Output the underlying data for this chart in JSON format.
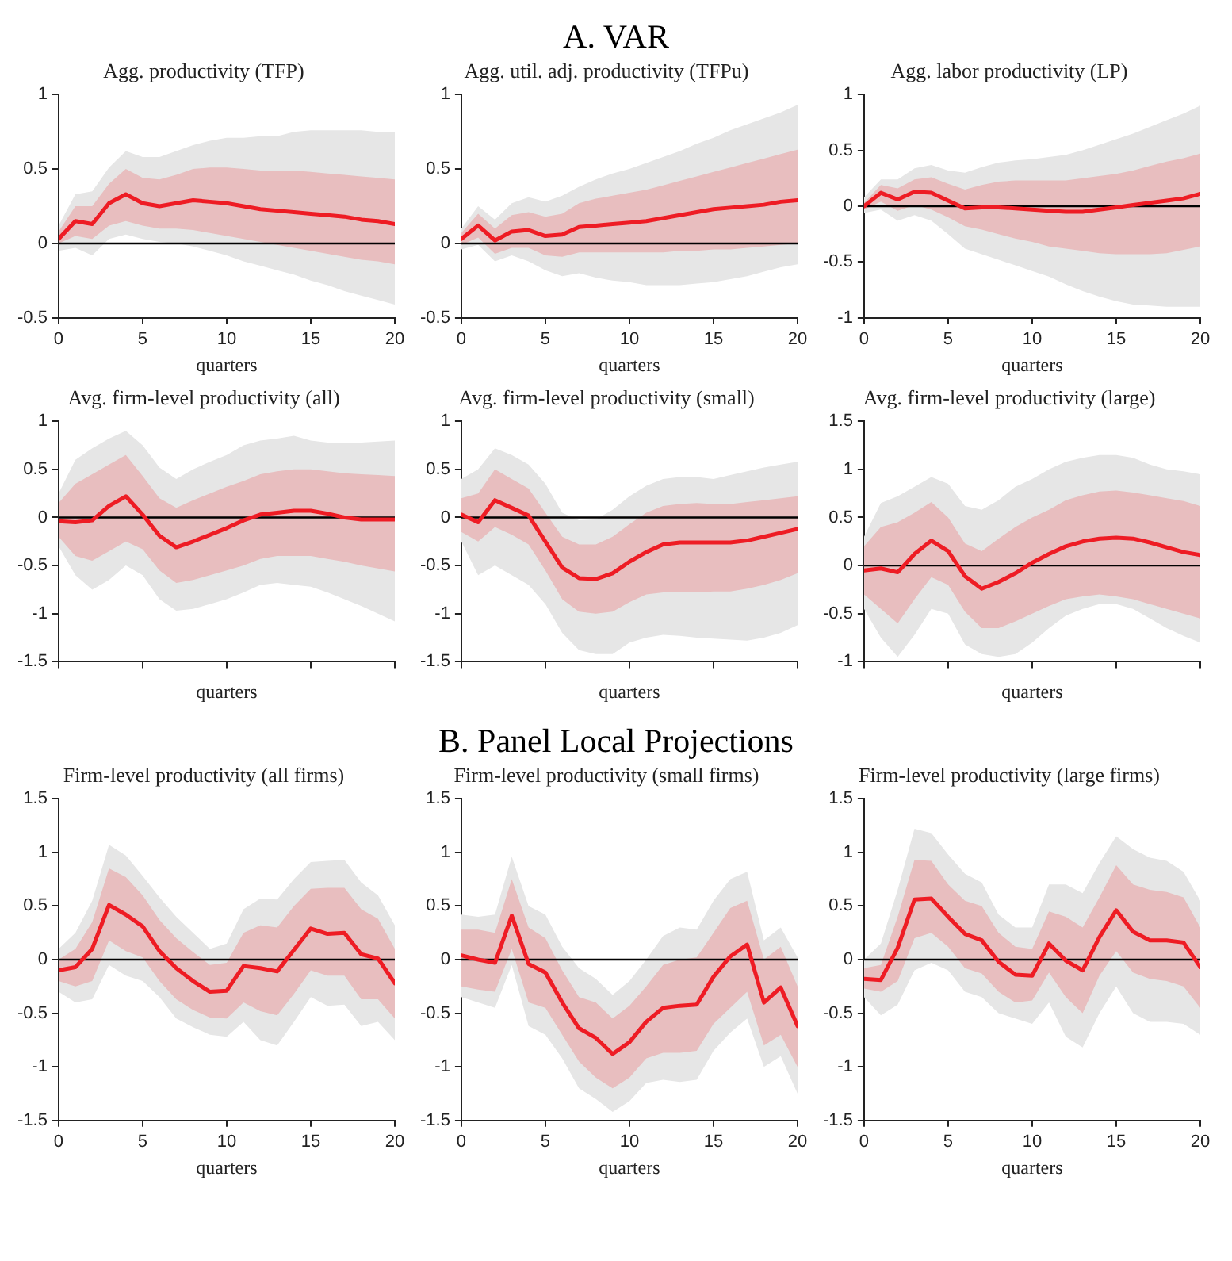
{
  "chart_data": [
    {
      "type": "line",
      "annotations": [
        "A. VAR"
      ],
      "title": "Agg. productivity (TFP)",
      "xlabel": "quarters",
      "x": [
        0,
        1,
        2,
        3,
        4,
        5,
        6,
        7,
        8,
        9,
        10,
        11,
        12,
        13,
        14,
        15,
        16,
        17,
        18,
        19,
        20
      ],
      "xlim": [
        0,
        20
      ],
      "xticks": [
        0,
        5,
        10,
        15,
        20
      ],
      "ylim": [
        -0.5,
        1
      ],
      "yticks": [
        -0.5,
        0,
        0.5,
        1
      ],
      "ref_lines": [
        {
          "axis": "y",
          "value": 0,
          "color": "#000000"
        }
      ],
      "series": [
        {
          "color": "#e6e6e6",
          "values": [
            null,
            null,
            null,
            null,
            null,
            null,
            null,
            null,
            null,
            null,
            null,
            null,
            null,
            null,
            null,
            null,
            null,
            null,
            null,
            null,
            null
          ],
          "lower": [
            -0.05,
            -0.03,
            -0.08,
            0.03,
            0.06,
            0.03,
            0.01,
            0,
            -0.02,
            -0.05,
            -0.08,
            -0.12,
            -0.15,
            -0.18,
            -0.21,
            -0.25,
            -0.28,
            -0.32,
            -0.35,
            -0.38,
            -0.41
          ],
          "upper": [
            0.12,
            0.33,
            0.35,
            0.51,
            0.62,
            0.58,
            0.58,
            0.62,
            0.66,
            0.69,
            0.71,
            0.71,
            0.72,
            0.72,
            0.75,
            0.76,
            0.76,
            0.76,
            0.76,
            0.75,
            0.75
          ]
        },
        {
          "color": "#ee1c24",
          "values": [
            0.03,
            0.15,
            0.13,
            0.27,
            0.33,
            0.27,
            0.25,
            0.27,
            0.29,
            0.28,
            0.27,
            0.25,
            0.23,
            0.22,
            0.21,
            0.2,
            0.19,
            0.18,
            0.16,
            0.15,
            0.13
          ],
          "lower": [
            0,
            0.05,
            0.03,
            0.12,
            0.15,
            0.12,
            0.1,
            0.1,
            0.09,
            0.07,
            0.05,
            0.03,
            0.01,
            -0.01,
            -0.03,
            -0.05,
            -0.07,
            -0.09,
            -0.11,
            -0.12,
            -0.14
          ],
          "upper": [
            0.08,
            0.25,
            0.25,
            0.4,
            0.5,
            0.44,
            0.43,
            0.46,
            0.5,
            0.51,
            0.51,
            0.5,
            0.49,
            0.49,
            0.49,
            0.48,
            0.47,
            0.46,
            0.45,
            0.44,
            0.43
          ]
        }
      ]
    },
    {
      "type": "line",
      "title": "Agg. util. adj. productivity (TFPu)",
      "xlabel": "quarters",
      "x": [
        0,
        1,
        2,
        3,
        4,
        5,
        6,
        7,
        8,
        9,
        10,
        11,
        12,
        13,
        14,
        15,
        16,
        17,
        18,
        19,
        20
      ],
      "xlim": [
        0,
        20
      ],
      "xticks": [
        0,
        5,
        10,
        15,
        20
      ],
      "ylim": [
        -0.5,
        1
      ],
      "yticks": [
        -0.5,
        0,
        0.5,
        1
      ],
      "ref_lines": [
        {
          "axis": "y",
          "value": 0,
          "color": "#000000"
        }
      ],
      "series": [
        {
          "color": "#e6e6e6",
          "values": [
            null,
            null,
            null,
            null,
            null,
            null,
            null,
            null,
            null,
            null,
            null,
            null,
            null,
            null,
            null,
            null,
            null,
            null,
            null,
            null,
            null
          ],
          "lower": [
            -0.04,
            -0.01,
            -0.12,
            -0.08,
            -0.12,
            -0.18,
            -0.22,
            -0.2,
            -0.23,
            -0.25,
            -0.26,
            -0.28,
            -0.28,
            -0.28,
            -0.27,
            -0.26,
            -0.24,
            -0.22,
            -0.19,
            -0.16,
            -0.14
          ],
          "upper": [
            0.1,
            0.25,
            0.16,
            0.27,
            0.31,
            0.28,
            0.32,
            0.38,
            0.43,
            0.47,
            0.5,
            0.54,
            0.58,
            0.62,
            0.67,
            0.71,
            0.76,
            0.8,
            0.84,
            0.88,
            0.93
          ]
        },
        {
          "color": "#ee1c24",
          "values": [
            0.03,
            0.12,
            0.02,
            0.08,
            0.09,
            0.05,
            0.06,
            0.11,
            0.12,
            0.13,
            0.14,
            0.15,
            0.17,
            0.19,
            0.21,
            0.23,
            0.24,
            0.25,
            0.26,
            0.28,
            0.29
          ],
          "lower": [
            -0.01,
            0.04,
            -0.07,
            -0.03,
            -0.03,
            -0.08,
            -0.09,
            -0.06,
            -0.06,
            -0.06,
            -0.06,
            -0.06,
            -0.06,
            -0.05,
            -0.05,
            -0.04,
            -0.04,
            -0.03,
            -0.02,
            -0.01,
            0
          ],
          "upper": [
            0.07,
            0.2,
            0.1,
            0.19,
            0.21,
            0.18,
            0.2,
            0.27,
            0.3,
            0.32,
            0.34,
            0.36,
            0.39,
            0.42,
            0.45,
            0.48,
            0.51,
            0.54,
            0.57,
            0.6,
            0.63
          ]
        }
      ]
    },
    {
      "type": "line",
      "title": "Agg. labor productivity (LP)",
      "xlabel": "quarters",
      "x": [
        0,
        1,
        2,
        3,
        4,
        5,
        6,
        7,
        8,
        9,
        10,
        11,
        12,
        13,
        14,
        15,
        16,
        17,
        18,
        19,
        20
      ],
      "xlim": [
        0,
        20
      ],
      "xticks": [
        0,
        5,
        10,
        15,
        20
      ],
      "ylim": [
        -1,
        1
      ],
      "yticks": [
        -1,
        -0.5,
        0,
        0.5,
        1
      ],
      "ref_lines": [
        {
          "axis": "y",
          "value": 0,
          "color": "#000000"
        }
      ],
      "series": [
        {
          "color": "#e6e6e6",
          "values": [
            null,
            null,
            null,
            null,
            null,
            null,
            null,
            null,
            null,
            null,
            null,
            null,
            null,
            null,
            null,
            null,
            null,
            null,
            null,
            null,
            null
          ],
          "lower": [
            -0.06,
            -0.03,
            -0.13,
            -0.08,
            -0.13,
            -0.25,
            -0.38,
            -0.43,
            -0.48,
            -0.53,
            -0.58,
            -0.63,
            -0.7,
            -0.76,
            -0.81,
            -0.85,
            -0.88,
            -0.89,
            -0.9,
            -0.9,
            -0.9
          ],
          "upper": [
            0.08,
            0.24,
            0.24,
            0.34,
            0.37,
            0.32,
            0.3,
            0.35,
            0.39,
            0.41,
            0.42,
            0.44,
            0.46,
            0.5,
            0.55,
            0.6,
            0.65,
            0.71,
            0.77,
            0.83,
            0.9
          ]
        },
        {
          "color": "#ee1c24",
          "values": [
            0,
            0.12,
            0.06,
            0.13,
            0.12,
            0.05,
            -0.02,
            -0.01,
            -0.01,
            -0.02,
            -0.03,
            -0.04,
            -0.05,
            -0.05,
            -0.03,
            -0.01,
            0.01,
            0.03,
            0.05,
            0.07,
            0.11
          ],
          "lower": [
            -0.03,
            0.04,
            -0.04,
            0.01,
            -0.03,
            -0.1,
            -0.18,
            -0.21,
            -0.25,
            -0.29,
            -0.32,
            -0.36,
            -0.38,
            -0.4,
            -0.42,
            -0.43,
            -0.43,
            -0.43,
            -0.42,
            -0.39,
            -0.36
          ],
          "upper": [
            0.03,
            0.19,
            0.16,
            0.24,
            0.26,
            0.2,
            0.15,
            0.19,
            0.22,
            0.23,
            0.23,
            0.23,
            0.23,
            0.25,
            0.27,
            0.29,
            0.32,
            0.36,
            0.4,
            0.43,
            0.47
          ]
        }
      ]
    },
    {
      "type": "line",
      "title": "Avg. firm-level productivity (all)",
      "xlabel": "quarters",
      "tick_labels": "y",
      "x": [
        0,
        1,
        2,
        3,
        4,
        5,
        6,
        7,
        8,
        9,
        10,
        11,
        12,
        13,
        14,
        15,
        16,
        17,
        18,
        19,
        20
      ],
      "xlim": [
        0,
        20
      ],
      "xticks": [
        {
          "value": 0,
          "label": null
        },
        {
          "value": 5,
          "label": null
        },
        {
          "value": 10,
          "label": null
        },
        {
          "value": 15,
          "label": null
        },
        {
          "value": 20,
          "label": null
        }
      ],
      "ylim": [
        -1.5,
        1
      ],
      "yticks": [
        -1.5,
        -1,
        -0.5,
        0,
        0.5,
        1
      ],
      "ref_lines": [
        {
          "axis": "y",
          "value": 0,
          "color": "#000000"
        }
      ],
      "series": [
        {
          "color": "#e6e6e6",
          "values": [
            null,
            null,
            null,
            null,
            null,
            null,
            null,
            null,
            null,
            null,
            null,
            null,
            null,
            null,
            null,
            null,
            null,
            null,
            null,
            null,
            null
          ],
          "lower": [
            -0.3,
            -0.6,
            -0.75,
            -0.65,
            -0.5,
            -0.6,
            -0.85,
            -0.97,
            -0.95,
            -0.9,
            -0.85,
            -0.78,
            -0.7,
            -0.68,
            -0.7,
            -0.72,
            -0.78,
            -0.85,
            -0.92,
            -1,
            -1.08
          ],
          "upper": [
            0.25,
            0.6,
            0.72,
            0.82,
            0.9,
            0.75,
            0.52,
            0.4,
            0.5,
            0.58,
            0.65,
            0.75,
            0.8,
            0.82,
            0.85,
            0.8,
            0.78,
            0.77,
            0.78,
            0.79,
            0.8
          ]
        },
        {
          "color": "#ee1c24",
          "values": [
            -0.04,
            -0.05,
            -0.03,
            0.12,
            0.22,
            0.03,
            -0.19,
            -0.31,
            -0.25,
            -0.18,
            -0.11,
            -0.03,
            0.03,
            0.05,
            0.07,
            0.07,
            0.04,
            0,
            -0.02,
            -0.02,
            -0.02
          ],
          "lower": [
            -0.2,
            -0.4,
            -0.45,
            -0.35,
            -0.25,
            -0.33,
            -0.55,
            -0.68,
            -0.65,
            -0.6,
            -0.55,
            -0.5,
            -0.43,
            -0.4,
            -0.4,
            -0.4,
            -0.43,
            -0.46,
            -0.5,
            -0.53,
            -0.56
          ],
          "upper": [
            0.15,
            0.35,
            0.45,
            0.55,
            0.65,
            0.43,
            0.2,
            0.1,
            0.18,
            0.25,
            0.32,
            0.38,
            0.45,
            0.48,
            0.5,
            0.5,
            0.48,
            0.46,
            0.45,
            0.44,
            0.43
          ]
        }
      ]
    },
    {
      "type": "line",
      "title": "Avg. firm-level productivity (small)",
      "xlabel": "quarters",
      "tick_labels": "y",
      "x": [
        0,
        1,
        2,
        3,
        4,
        5,
        6,
        7,
        8,
        9,
        10,
        11,
        12,
        13,
        14,
        15,
        16,
        17,
        18,
        19,
        20
      ],
      "xlim": [
        0,
        20
      ],
      "xticks": [
        {
          "value": 0,
          "label": null
        },
        {
          "value": 5,
          "label": null
        },
        {
          "value": 10,
          "label": null
        },
        {
          "value": 15,
          "label": null
        },
        {
          "value": 20,
          "label": null
        }
      ],
      "ylim": [
        -1.5,
        1
      ],
      "yticks": [
        -1.5,
        -1,
        -0.5,
        0,
        0.5,
        1
      ],
      "ref_lines": [
        {
          "axis": "y",
          "value": 0,
          "color": "#000000"
        }
      ],
      "series": [
        {
          "color": "#e6e6e6",
          "values": [
            null,
            null,
            null,
            null,
            null,
            null,
            null,
            null,
            null,
            null,
            null,
            null,
            null,
            null,
            null,
            null,
            null,
            null,
            null,
            null,
            null
          ],
          "lower": [
            -0.25,
            -0.6,
            -0.5,
            -0.6,
            -0.7,
            -0.9,
            -1.2,
            -1.38,
            -1.42,
            -1.42,
            -1.3,
            -1.25,
            -1.22,
            -1.23,
            -1.25,
            -1.26,
            -1.27,
            -1.28,
            -1.25,
            -1.2,
            -1.12
          ],
          "upper": [
            0.4,
            0.5,
            0.72,
            0.65,
            0.55,
            0.35,
            0.05,
            -0.03,
            -0.02,
            0.08,
            0.22,
            0.33,
            0.4,
            0.42,
            0.42,
            0.4,
            0.44,
            0.48,
            0.52,
            0.55,
            0.58
          ]
        },
        {
          "color": "#ee1c24",
          "values": [
            0.03,
            -0.05,
            0.18,
            0.1,
            0.02,
            -0.25,
            -0.52,
            -0.63,
            -0.64,
            -0.58,
            -0.46,
            -0.36,
            -0.28,
            -0.26,
            -0.26,
            -0.26,
            -0.26,
            -0.24,
            -0.2,
            -0.16,
            -0.12
          ],
          "lower": [
            -0.15,
            -0.25,
            -0.1,
            -0.18,
            -0.28,
            -0.55,
            -0.85,
            -0.98,
            -1,
            -0.98,
            -0.88,
            -0.8,
            -0.78,
            -0.78,
            -0.78,
            -0.77,
            -0.77,
            -0.74,
            -0.7,
            -0.65,
            -0.58
          ],
          "upper": [
            0.2,
            0.25,
            0.5,
            0.4,
            0.3,
            0.05,
            -0.2,
            -0.28,
            -0.28,
            -0.2,
            -0.07,
            0.05,
            0.12,
            0.14,
            0.15,
            0.14,
            0.14,
            0.16,
            0.18,
            0.2,
            0.22
          ]
        }
      ]
    },
    {
      "type": "line",
      "title": "Avg. firm-level productivity (large)",
      "xlabel": "quarters",
      "tick_labels": "y",
      "x": [
        0,
        1,
        2,
        3,
        4,
        5,
        6,
        7,
        8,
        9,
        10,
        11,
        12,
        13,
        14,
        15,
        16,
        17,
        18,
        19,
        20
      ],
      "xlim": [
        0,
        20
      ],
      "xticks": [
        {
          "value": 0,
          "label": null
        },
        {
          "value": 5,
          "label": null
        },
        {
          "value": 10,
          "label": null
        },
        {
          "value": 15,
          "label": null
        },
        {
          "value": 20,
          "label": null
        }
      ],
      "ylim": [
        -1,
        1.5
      ],
      "yticks": [
        -1,
        -0.5,
        0,
        0.5,
        1,
        1.5
      ],
      "ref_lines": [
        {
          "axis": "y",
          "value": 0,
          "color": "#000000"
        }
      ],
      "series": [
        {
          "color": "#e6e6e6",
          "values": [
            null,
            null,
            null,
            null,
            null,
            null,
            null,
            null,
            null,
            null,
            null,
            null,
            null,
            null,
            null,
            null,
            null,
            null,
            null,
            null,
            null
          ],
          "lower": [
            -0.45,
            -0.75,
            -0.95,
            -0.72,
            -0.45,
            -0.5,
            -0.82,
            -0.92,
            -0.95,
            -0.92,
            -0.8,
            -0.65,
            -0.52,
            -0.45,
            -0.4,
            -0.4,
            -0.45,
            -0.55,
            -0.65,
            -0.73,
            -0.8
          ],
          "upper": [
            0.3,
            0.65,
            0.72,
            0.82,
            0.92,
            0.85,
            0.62,
            0.58,
            0.68,
            0.82,
            0.9,
            1,
            1.08,
            1.12,
            1.15,
            1.15,
            1.12,
            1.05,
            1,
            0.98,
            0.95
          ]
        },
        {
          "color": "#ee1c24",
          "values": [
            -0.05,
            -0.03,
            -0.07,
            0.12,
            0.26,
            0.15,
            -0.11,
            -0.24,
            -0.17,
            -0.08,
            0.03,
            0.12,
            0.2,
            0.25,
            0.28,
            0.29,
            0.28,
            0.24,
            0.19,
            0.14,
            0.11
          ],
          "lower": [
            -0.3,
            -0.45,
            -0.6,
            -0.35,
            -0.12,
            -0.2,
            -0.48,
            -0.65,
            -0.65,
            -0.58,
            -0.5,
            -0.42,
            -0.35,
            -0.32,
            -0.3,
            -0.32,
            -0.35,
            -0.4,
            -0.45,
            -0.5,
            -0.55
          ],
          "upper": [
            0.2,
            0.4,
            0.45,
            0.55,
            0.66,
            0.5,
            0.23,
            0.15,
            0.28,
            0.4,
            0.5,
            0.58,
            0.68,
            0.73,
            0.77,
            0.78,
            0.76,
            0.73,
            0.7,
            0.67,
            0.62
          ]
        }
      ]
    },
    {
      "type": "line",
      "annotations": [
        "B. Panel Local Projections"
      ],
      "title": "Firm-level productivity (all firms)",
      "xlabel": "quarters",
      "x": [
        0,
        1,
        2,
        3,
        4,
        5,
        6,
        7,
        8,
        9,
        10,
        11,
        12,
        13,
        14,
        15,
        16,
        17,
        18,
        19,
        20
      ],
      "xlim": [
        0,
        20
      ],
      "xticks": [
        0,
        5,
        10,
        15,
        20
      ],
      "ylim": [
        -1.5,
        1.5
      ],
      "yticks": [
        -1.5,
        -1,
        -0.5,
        0,
        0.5,
        1,
        1.5
      ],
      "ref_lines": [
        {
          "axis": "y",
          "value": 0,
          "color": "#000000"
        }
      ],
      "series": [
        {
          "color": "#e6e6e6",
          "values": [
            null,
            null,
            null,
            null,
            null,
            null,
            null,
            null,
            null,
            null,
            null,
            null,
            null,
            null,
            null,
            null,
            null,
            null,
            null,
            null,
            null
          ],
          "lower": [
            -0.3,
            -0.4,
            -0.37,
            -0.05,
            -0.15,
            -0.2,
            -0.35,
            -0.55,
            -0.63,
            -0.7,
            -0.72,
            -0.58,
            -0.75,
            -0.8,
            -0.58,
            -0.35,
            -0.43,
            -0.42,
            -0.62,
            -0.58,
            -0.75
          ],
          "upper": [
            0.1,
            0.25,
            0.55,
            1.07,
            0.97,
            0.78,
            0.58,
            0.4,
            0.25,
            0.1,
            0.15,
            0.47,
            0.57,
            0.56,
            0.75,
            0.91,
            0.92,
            0.93,
            0.72,
            0.6,
            0.32
          ]
        },
        {
          "color": "#ee1c24",
          "values": [
            -0.1,
            -0.07,
            0.1,
            0.51,
            0.42,
            0.31,
            0.08,
            -0.08,
            -0.2,
            -0.3,
            -0.29,
            -0.06,
            -0.08,
            -0.11,
            0.09,
            0.29,
            0.24,
            0.25,
            0.05,
            0.01,
            -0.22
          ],
          "lower": [
            -0.2,
            -0.25,
            -0.2,
            0.18,
            0.08,
            0.02,
            -0.2,
            -0.37,
            -0.47,
            -0.54,
            -0.55,
            -0.4,
            -0.48,
            -0.52,
            -0.32,
            -0.1,
            -0.15,
            -0.15,
            -0.37,
            -0.37,
            -0.55
          ],
          "upper": [
            0,
            0.1,
            0.35,
            0.85,
            0.77,
            0.6,
            0.37,
            0.2,
            0.07,
            -0.05,
            -0.03,
            0.25,
            0.32,
            0.3,
            0.5,
            0.66,
            0.67,
            0.67,
            0.47,
            0.38,
            0.1
          ]
        }
      ]
    },
    {
      "type": "line",
      "title": "Firm-level productivity (small firms)",
      "xlabel": "quarters",
      "x": [
        0,
        1,
        2,
        3,
        4,
        5,
        6,
        7,
        8,
        9,
        10,
        11,
        12,
        13,
        14,
        15,
        16,
        17,
        18,
        19,
        20
      ],
      "xlim": [
        0,
        20
      ],
      "xticks": [
        0,
        5,
        10,
        15,
        20
      ],
      "ylim": [
        -1.5,
        1.5
      ],
      "yticks": [
        -1.5,
        -1,
        -0.5,
        0,
        0.5,
        1,
        1.5
      ],
      "ref_lines": [
        {
          "axis": "y",
          "value": 0,
          "color": "#000000"
        }
      ],
      "series": [
        {
          "color": "#e6e6e6",
          "values": [
            null,
            null,
            null,
            null,
            null,
            null,
            null,
            null,
            null,
            null,
            null,
            null,
            null,
            null,
            null,
            null,
            null,
            null,
            null,
            null,
            null
          ],
          "lower": [
            -0.35,
            -0.4,
            -0.45,
            -0.05,
            -0.62,
            -0.7,
            -0.92,
            -1.2,
            -1.3,
            -1.42,
            -1.32,
            -1.15,
            -1.12,
            -1.14,
            -1.12,
            -0.85,
            -0.68,
            -0.55,
            -1,
            -0.9,
            -1.25
          ],
          "upper": [
            0.42,
            0.4,
            0.42,
            0.96,
            0.5,
            0.42,
            0.12,
            -0.08,
            -0.18,
            -0.33,
            -0.2,
            0,
            0.22,
            0.3,
            0.28,
            0.55,
            0.75,
            0.82,
            0.18,
            0.3,
            0.02
          ]
        },
        {
          "color": "#ee1c24",
          "values": [
            0.04,
            0,
            -0.03,
            0.41,
            -0.04,
            -0.12,
            -0.4,
            -0.64,
            -0.73,
            -0.88,
            -0.77,
            -0.58,
            -0.45,
            -0.43,
            -0.42,
            -0.16,
            0.03,
            0.14,
            -0.4,
            -0.26,
            -0.62
          ],
          "lower": [
            -0.25,
            -0.28,
            -0.3,
            0.1,
            -0.4,
            -0.45,
            -0.7,
            -0.95,
            -1.1,
            -1.2,
            -1.1,
            -0.92,
            -0.87,
            -0.87,
            -0.85,
            -0.6,
            -0.45,
            -0.3,
            -0.8,
            -0.7,
            -1
          ],
          "upper": [
            0.28,
            0.28,
            0.25,
            0.75,
            0.3,
            0.2,
            -0.1,
            -0.35,
            -0.4,
            -0.55,
            -0.43,
            -0.25,
            -0.05,
            0,
            0.02,
            0.25,
            0.48,
            0.55,
            0,
            0.12,
            -0.25
          ]
        }
      ]
    },
    {
      "type": "line",
      "title": "Firm-level productivity (large firms)",
      "xlabel": "quarters",
      "x": [
        0,
        1,
        2,
        3,
        4,
        5,
        6,
        7,
        8,
        9,
        10,
        11,
        12,
        13,
        14,
        15,
        16,
        17,
        18,
        19,
        20
      ],
      "xlim": [
        0,
        20
      ],
      "xticks": [
        0,
        5,
        10,
        15,
        20
      ],
      "ylim": [
        -1.5,
        1.5
      ],
      "yticks": [
        -1.5,
        -1,
        -0.5,
        0,
        0.5,
        1,
        1.5
      ],
      "ref_lines": [
        {
          "axis": "y",
          "value": 0,
          "color": "#000000"
        }
      ],
      "series": [
        {
          "color": "#e6e6e6",
          "values": [
            null,
            null,
            null,
            null,
            null,
            null,
            null,
            null,
            null,
            null,
            null,
            null,
            null,
            null,
            null,
            null,
            null,
            null,
            null,
            null,
            null
          ],
          "lower": [
            -0.35,
            -0.52,
            -0.42,
            -0.1,
            -0.03,
            -0.1,
            -0.3,
            -0.35,
            -0.5,
            -0.55,
            -0.6,
            -0.4,
            -0.72,
            -0.82,
            -0.5,
            -0.25,
            -0.5,
            -0.58,
            -0.58,
            -0.6,
            -0.7
          ],
          "upper": [
            0,
            0.15,
            0.65,
            1.22,
            1.18,
            0.98,
            0.8,
            0.72,
            0.42,
            0.3,
            0.3,
            0.7,
            0.7,
            0.62,
            0.9,
            1.15,
            1.03,
            0.95,
            0.92,
            0.82,
            0.55
          ]
        },
        {
          "color": "#ee1c24",
          "values": [
            -0.18,
            -0.19,
            0.11,
            0.56,
            0.57,
            0.4,
            0.24,
            0.18,
            -0.02,
            -0.14,
            -0.15,
            0.15,
            -0.01,
            -0.1,
            0.21,
            0.46,
            0.26,
            0.18,
            0.18,
            0.16,
            -0.07
          ],
          "lower": [
            -0.27,
            -0.3,
            -0.2,
            0.2,
            0.25,
            0.12,
            -0.08,
            -0.13,
            -0.3,
            -0.4,
            -0.38,
            -0.12,
            -0.35,
            -0.5,
            -0.15,
            0.08,
            -0.12,
            -0.18,
            -0.2,
            -0.25,
            -0.45
          ],
          "upper": [
            -0.08,
            -0.05,
            0.4,
            0.93,
            0.92,
            0.7,
            0.55,
            0.5,
            0.25,
            0.12,
            0.1,
            0.45,
            0.4,
            0.3,
            0.58,
            0.88,
            0.7,
            0.65,
            0.63,
            0.58,
            0.3
          ]
        }
      ]
    }
  ]
}
